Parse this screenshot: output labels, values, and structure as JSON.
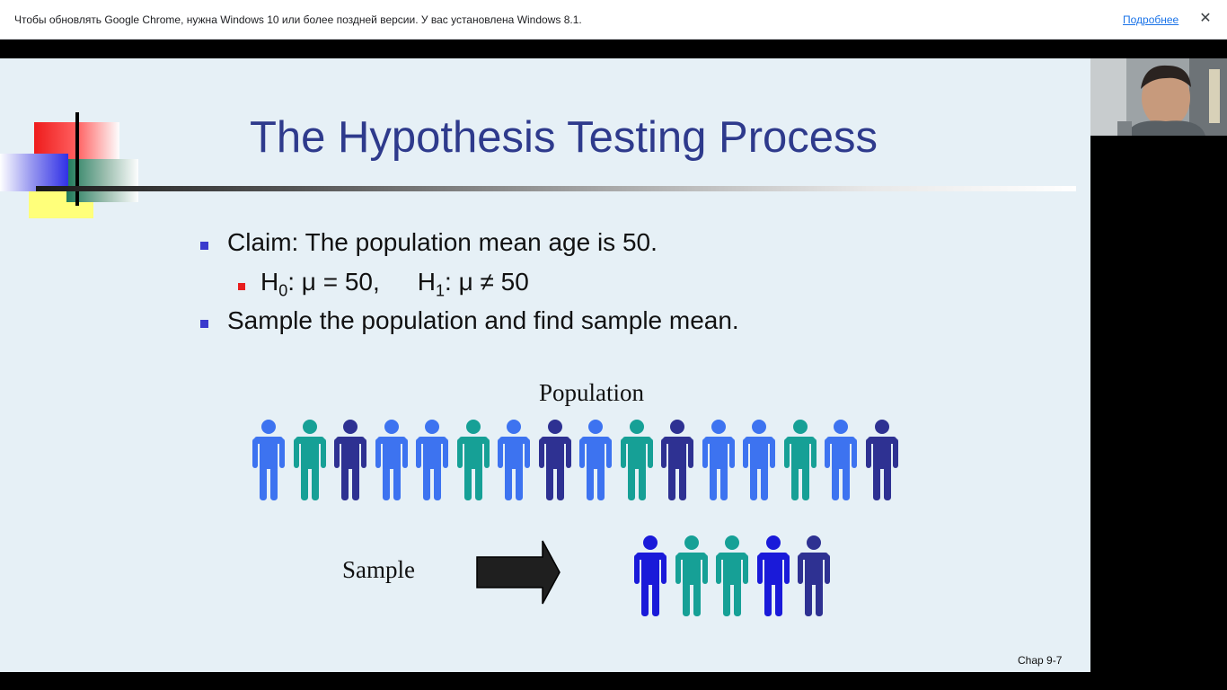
{
  "infobar": {
    "message": "Чтобы обновлять Google Chrome, нужна Windows 10 или более поздней версии. У вас установлена Windows 8.1.",
    "more_link": "Подробнее",
    "close_glyph": "✕"
  },
  "slide": {
    "title": "The Hypothesis Testing Process",
    "bullets": {
      "claim": "Claim: The population mean age is 50.",
      "sample": "Sample the population and find sample mean."
    },
    "hypotheses": {
      "h0_letter": "H",
      "h0_sub": "0",
      "h0_rest": ": μ = 50,",
      "h1_letter": "H",
      "h1_sub": "1",
      "h1_rest": ": μ ≠ 50"
    },
    "population_label": "Population",
    "sample_label": "Sample",
    "footer": "Chap 9-7",
    "population_colors": [
      "#3d73f0",
      "#16a096",
      "#2e3192",
      "#3d73f0",
      "#3d73f0",
      "#16a096",
      "#3d73f0",
      "#2e3192",
      "#3d73f0",
      "#16a096",
      "#2e3192",
      "#3d73f0",
      "#3d73f0",
      "#16a096",
      "#3d73f0",
      "#2e3192"
    ],
    "sample_colors": [
      "#1a1ad9",
      "#16a096",
      "#16a096",
      "#1a1ad9",
      "#2e3192"
    ],
    "colors": {
      "title": "#2e3a8c",
      "bullet_blue": "#3a3acd",
      "bullet_red": "#e81e1e",
      "background": "#e6f0f6"
    }
  },
  "webcam": {
    "icon": "webcam-video-icon"
  }
}
